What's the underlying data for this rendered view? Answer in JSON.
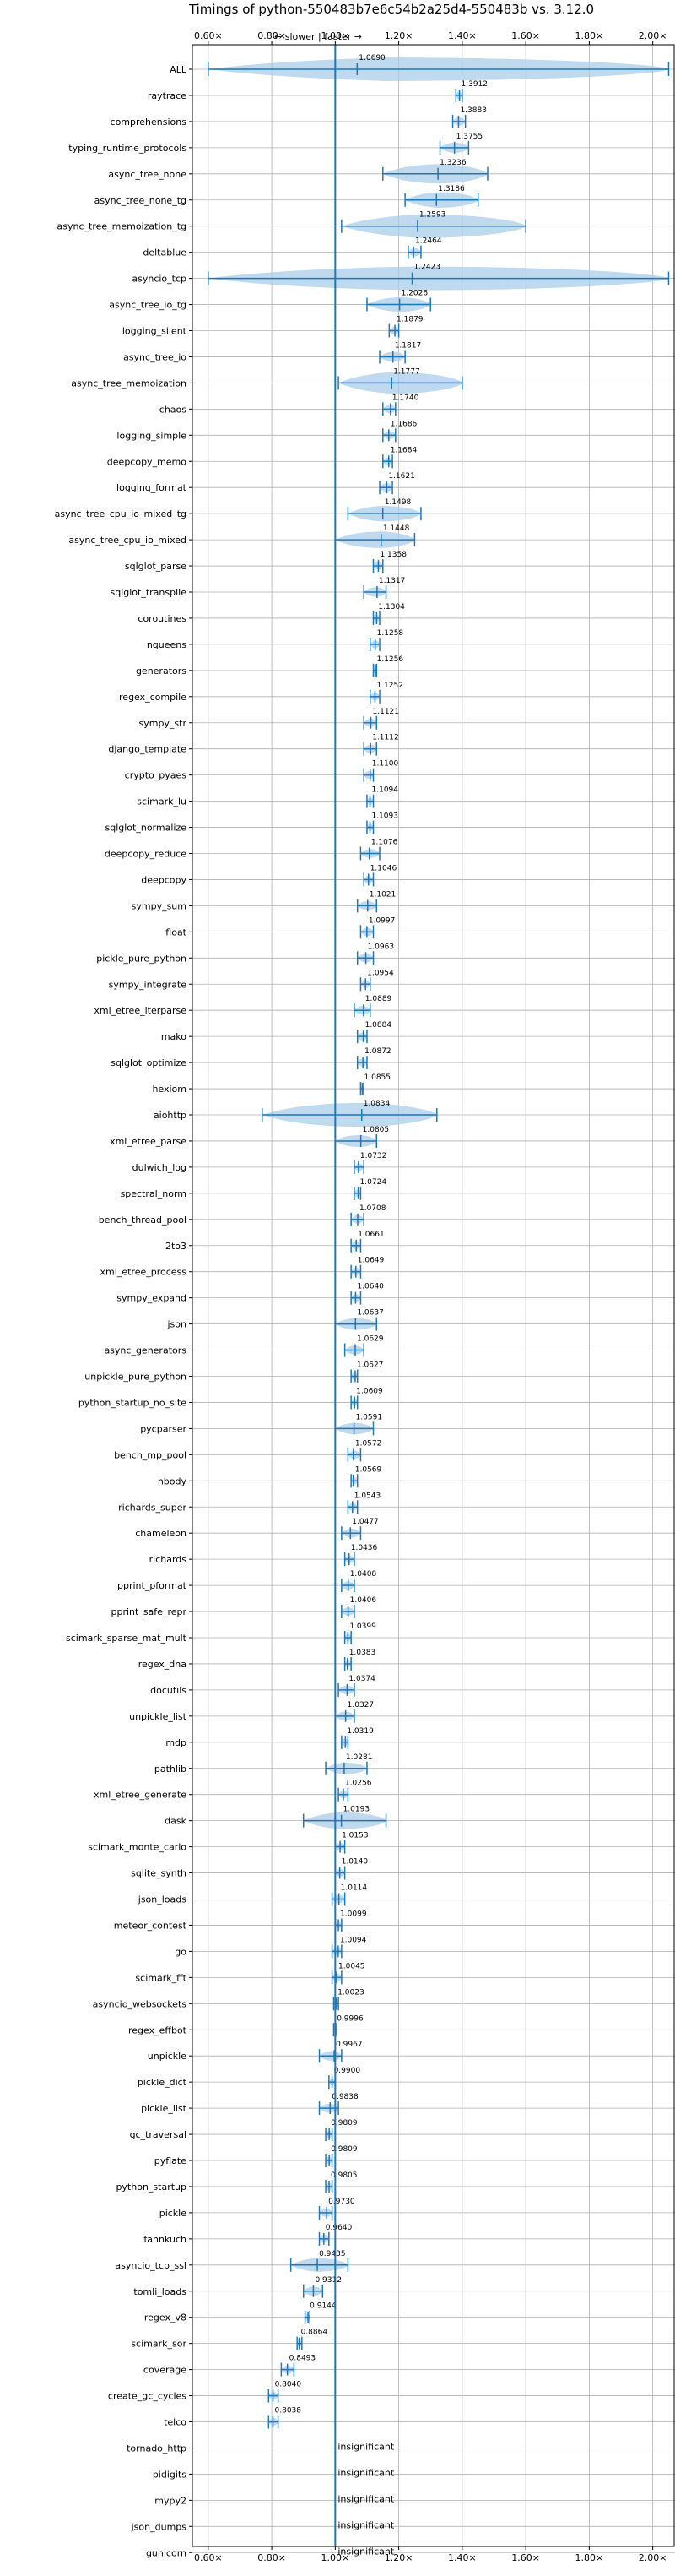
{
  "chart_data": {
    "type": "violin",
    "title": "Timings of python-550483b7e6c54b2a25d4-550483b vs. 3.12.0",
    "annotation": "← slower | faster →",
    "xlim": [
      0.55,
      2.07
    ],
    "xticks": [
      0.6,
      0.8,
      1.0,
      1.2,
      1.4,
      1.6,
      1.8,
      2.0
    ],
    "xtick_labels": [
      "0.60×",
      "0.80×",
      "1.00×",
      "1.20×",
      "1.40×",
      "1.60×",
      "1.80×",
      "2.00×"
    ],
    "reference_line": 1.0,
    "grid": true,
    "colors": {
      "violin": "#a9cce8",
      "line": "#1f77b4",
      "highlight": "#e377c2",
      "text": "#000000",
      "grid": "#b0b0b0"
    },
    "insignificant_label": "insignificant",
    "benchmarks": [
      {
        "name": "ALL",
        "value": 1.069,
        "label": "1.0690",
        "min": 0.6,
        "max": 2.05
      },
      {
        "name": "raytrace",
        "value": 1.3912,
        "label": "1.3912",
        "min": 1.38,
        "max": 1.4
      },
      {
        "name": "comprehensions",
        "value": 1.3883,
        "label": "1.3883",
        "min": 1.37,
        "max": 1.41
      },
      {
        "name": "typing_runtime_protocols",
        "value": 1.3755,
        "label": "1.3755",
        "min": 1.33,
        "max": 1.42
      },
      {
        "name": "async_tree_none",
        "value": 1.3236,
        "label": "1.3236",
        "min": 1.15,
        "max": 1.48
      },
      {
        "name": "async_tree_none_tg",
        "value": 1.3186,
        "label": "1.3186",
        "min": 1.22,
        "max": 1.45
      },
      {
        "name": "async_tree_memoization_tg",
        "value": 1.2593,
        "label": "1.2593",
        "min": 1.02,
        "max": 1.6
      },
      {
        "name": "deltablue",
        "value": 1.2464,
        "label": "1.2464",
        "min": 1.23,
        "max": 1.27
      },
      {
        "name": "asyncio_tcp",
        "value": 1.2423,
        "label": "1.2423",
        "min": 0.6,
        "max": 2.05
      },
      {
        "name": "async_tree_io_tg",
        "value": 1.2026,
        "label": "1.2026",
        "min": 1.1,
        "max": 1.3
      },
      {
        "name": "logging_silent",
        "value": 1.1879,
        "label": "1.1879",
        "min": 1.17,
        "max": 1.2
      },
      {
        "name": "async_tree_io",
        "value": 1.1817,
        "label": "1.1817",
        "min": 1.14,
        "max": 1.22
      },
      {
        "name": "async_tree_memoization",
        "value": 1.1777,
        "label": "1.1777",
        "min": 1.01,
        "max": 1.4
      },
      {
        "name": "chaos",
        "value": 1.174,
        "label": "1.1740",
        "min": 1.15,
        "max": 1.19
      },
      {
        "name": "logging_simple",
        "value": 1.1686,
        "label": "1.1686",
        "min": 1.15,
        "max": 1.19
      },
      {
        "name": "deepcopy_memo",
        "value": 1.1684,
        "label": "1.1684",
        "min": 1.15,
        "max": 1.18
      },
      {
        "name": "logging_format",
        "value": 1.1621,
        "label": "1.1621",
        "min": 1.14,
        "max": 1.18
      },
      {
        "name": "async_tree_cpu_io_mixed_tg",
        "value": 1.1498,
        "label": "1.1498",
        "min": 1.04,
        "max": 1.27
      },
      {
        "name": "async_tree_cpu_io_mixed",
        "value": 1.1448,
        "label": "1.1448",
        "min": 1.0,
        "max": 1.25
      },
      {
        "name": "sqlglot_parse",
        "value": 1.1358,
        "label": "1.1358",
        "min": 1.12,
        "max": 1.15
      },
      {
        "name": "sqlglot_transpile",
        "value": 1.1317,
        "label": "1.1317",
        "min": 1.09,
        "max": 1.16
      },
      {
        "name": "coroutines",
        "value": 1.1304,
        "label": "1.1304",
        "min": 1.12,
        "max": 1.14
      },
      {
        "name": "nqueens",
        "value": 1.1258,
        "label": "1.1258",
        "min": 1.11,
        "max": 1.14
      },
      {
        "name": "generators",
        "value": 1.1256,
        "label": "1.1256",
        "min": 1.12,
        "max": 1.13
      },
      {
        "name": "regex_compile",
        "value": 1.1252,
        "label": "1.1252",
        "min": 1.11,
        "max": 1.14
      },
      {
        "name": "sympy_str",
        "value": 1.1121,
        "label": "1.1121",
        "min": 1.09,
        "max": 1.13
      },
      {
        "name": "django_template",
        "value": 1.1112,
        "label": "1.1112",
        "min": 1.09,
        "max": 1.13
      },
      {
        "name": "crypto_pyaes",
        "value": 1.11,
        "label": "1.1100",
        "min": 1.09,
        "max": 1.12
      },
      {
        "name": "scimark_lu",
        "value": 1.1094,
        "label": "1.1094",
        "min": 1.1,
        "max": 1.12
      },
      {
        "name": "sqlglot_normalize",
        "value": 1.1093,
        "label": "1.1093",
        "min": 1.1,
        "max": 1.12
      },
      {
        "name": "deepcopy_reduce",
        "value": 1.1076,
        "label": "1.1076",
        "min": 1.08,
        "max": 1.14
      },
      {
        "name": "deepcopy",
        "value": 1.1046,
        "label": "1.1046",
        "min": 1.09,
        "max": 1.12
      },
      {
        "name": "sympy_sum",
        "value": 1.1021,
        "label": "1.1021",
        "min": 1.07,
        "max": 1.13
      },
      {
        "name": "float",
        "value": 1.0997,
        "label": "1.0997",
        "min": 1.08,
        "max": 1.12
      },
      {
        "name": "pickle_pure_python",
        "value": 1.0963,
        "label": "1.0963",
        "min": 1.07,
        "max": 1.12
      },
      {
        "name": "sympy_integrate",
        "value": 1.0954,
        "label": "1.0954",
        "min": 1.08,
        "max": 1.11
      },
      {
        "name": "xml_etree_iterparse",
        "value": 1.0889,
        "label": "1.0889",
        "min": 1.06,
        "max": 1.11
      },
      {
        "name": "mako",
        "value": 1.0884,
        "label": "1.0884",
        "min": 1.07,
        "max": 1.1
      },
      {
        "name": "sqlglot_optimize",
        "value": 1.0872,
        "label": "1.0872",
        "min": 1.07,
        "max": 1.1
      },
      {
        "name": "hexiom",
        "value": 1.0855,
        "label": "1.0855",
        "min": 1.08,
        "max": 1.09
      },
      {
        "name": "aiohttp",
        "value": 1.0834,
        "label": "1.0834",
        "min": 0.77,
        "max": 1.32
      },
      {
        "name": "xml_etree_parse",
        "value": 1.0805,
        "label": "1.0805",
        "min": 1.0,
        "max": 1.13
      },
      {
        "name": "dulwich_log",
        "value": 1.0732,
        "label": "1.0732",
        "min": 1.06,
        "max": 1.09
      },
      {
        "name": "spectral_norm",
        "value": 1.0724,
        "label": "1.0724",
        "min": 1.06,
        "max": 1.08
      },
      {
        "name": "bench_thread_pool",
        "value": 1.0708,
        "label": "1.0708",
        "min": 1.05,
        "max": 1.09
      },
      {
        "name": "2to3",
        "value": 1.0661,
        "label": "1.0661",
        "min": 1.05,
        "max": 1.08
      },
      {
        "name": "xml_etree_process",
        "value": 1.0649,
        "label": "1.0649",
        "min": 1.05,
        "max": 1.08
      },
      {
        "name": "sympy_expand",
        "value": 1.064,
        "label": "1.0640",
        "min": 1.05,
        "max": 1.08
      },
      {
        "name": "json",
        "value": 1.0637,
        "label": "1.0637",
        "min": 1.0,
        "max": 1.13
      },
      {
        "name": "async_generators",
        "value": 1.0629,
        "label": "1.0629",
        "min": 1.03,
        "max": 1.09
      },
      {
        "name": "unpickle_pure_python",
        "value": 1.0627,
        "label": "1.0627",
        "min": 1.05,
        "max": 1.07
      },
      {
        "name": "python_startup_no_site",
        "value": 1.0609,
        "label": "1.0609",
        "min": 1.05,
        "max": 1.07
      },
      {
        "name": "pycparser",
        "value": 1.0591,
        "label": "1.0591",
        "min": 1.0,
        "max": 1.12
      },
      {
        "name": "bench_mp_pool",
        "value": 1.0572,
        "label": "1.0572",
        "min": 1.04,
        "max": 1.08
      },
      {
        "name": "nbody",
        "value": 1.0569,
        "label": "1.0569",
        "min": 1.05,
        "max": 1.07
      },
      {
        "name": "richards_super",
        "value": 1.0543,
        "label": "1.0543",
        "min": 1.04,
        "max": 1.07
      },
      {
        "name": "chameleon",
        "value": 1.0477,
        "label": "1.0477",
        "min": 1.02,
        "max": 1.08
      },
      {
        "name": "richards",
        "value": 1.0436,
        "label": "1.0436",
        "min": 1.03,
        "max": 1.06
      },
      {
        "name": "pprint_pformat",
        "value": 1.0408,
        "label": "1.0408",
        "min": 1.02,
        "max": 1.06
      },
      {
        "name": "pprint_safe_repr",
        "value": 1.0406,
        "label": "1.0406",
        "min": 1.02,
        "max": 1.06
      },
      {
        "name": "scimark_sparse_mat_mult",
        "value": 1.0399,
        "label": "1.0399",
        "min": 1.03,
        "max": 1.05
      },
      {
        "name": "regex_dna",
        "value": 1.0383,
        "label": "1.0383",
        "min": 1.03,
        "max": 1.05
      },
      {
        "name": "docutils",
        "value": 1.0374,
        "label": "1.0374",
        "min": 1.01,
        "max": 1.06
      },
      {
        "name": "unpickle_list",
        "value": 1.0327,
        "label": "1.0327",
        "min": 1.0,
        "max": 1.06
      },
      {
        "name": "mdp",
        "value": 1.0319,
        "label": "1.0319",
        "min": 1.02,
        "max": 1.04
      },
      {
        "name": "pathlib",
        "value": 1.0281,
        "label": "1.0281",
        "min": 0.97,
        "max": 1.1
      },
      {
        "name": "xml_etree_generate",
        "value": 1.0256,
        "label": "1.0256",
        "min": 1.01,
        "max": 1.04
      },
      {
        "name": "dask",
        "value": 1.0193,
        "label": "1.0193",
        "min": 0.9,
        "max": 1.16
      },
      {
        "name": "scimark_monte_carlo",
        "value": 1.0153,
        "label": "1.0153",
        "min": 1.0,
        "max": 1.03
      },
      {
        "name": "sqlite_synth",
        "value": 1.014,
        "label": "1.0140",
        "min": 1.0,
        "max": 1.03
      },
      {
        "name": "json_loads",
        "value": 1.0114,
        "label": "1.0114",
        "min": 0.99,
        "max": 1.03
      },
      {
        "name": "meteor_contest",
        "value": 1.0099,
        "label": "1.0099",
        "min": 1.0,
        "max": 1.02
      },
      {
        "name": "go",
        "value": 1.0094,
        "label": "1.0094",
        "min": 0.99,
        "max": 1.02
      },
      {
        "name": "scimark_fft",
        "value": 1.0045,
        "label": "1.0045",
        "min": 0.99,
        "max": 1.02
      },
      {
        "name": "asyncio_websockets",
        "value": 1.0023,
        "label": "1.0023",
        "min": 0.995,
        "max": 1.01
      },
      {
        "name": "regex_effbot",
        "value": 0.9996,
        "label": "0.9996",
        "min": 0.995,
        "max": 1.005
      },
      {
        "name": "unpickle",
        "value": 0.9967,
        "label": "0.9967",
        "min": 0.95,
        "max": 1.02
      },
      {
        "name": "pickle_dict",
        "value": 0.99,
        "label": "0.9900",
        "min": 0.98,
        "max": 1.0
      },
      {
        "name": "pickle_list",
        "value": 0.9838,
        "label": "0.9838",
        "min": 0.95,
        "max": 1.01
      },
      {
        "name": "gc_traversal",
        "value": 0.9809,
        "label": "0.9809",
        "min": 0.97,
        "max": 0.99
      },
      {
        "name": "pyflate",
        "value": 0.9809,
        "label": "0.9809",
        "min": 0.97,
        "max": 0.99
      },
      {
        "name": "python_startup",
        "value": 0.9805,
        "label": "0.9805",
        "min": 0.97,
        "max": 0.99
      },
      {
        "name": "pickle",
        "value": 0.973,
        "label": "0.9730",
        "min": 0.95,
        "max": 0.99
      },
      {
        "name": "fannkuch",
        "value": 0.964,
        "label": "0.9640",
        "min": 0.95,
        "max": 0.98
      },
      {
        "name": "asyncio_tcp_ssl",
        "value": 0.9435,
        "label": "0.9435",
        "min": 0.86,
        "max": 1.04
      },
      {
        "name": "tomli_loads",
        "value": 0.9312,
        "label": "0.9312",
        "min": 0.9,
        "max": 0.96
      },
      {
        "name": "regex_v8",
        "value": 0.9144,
        "label": "0.9144",
        "min": 0.905,
        "max": 0.92
      },
      {
        "name": "scimark_sor",
        "value": 0.8864,
        "label": "0.8864",
        "min": 0.88,
        "max": 0.895
      },
      {
        "name": "coverage",
        "value": 0.8493,
        "label": "0.8493",
        "min": 0.83,
        "max": 0.87
      },
      {
        "name": "create_gc_cycles",
        "value": 0.804,
        "label": "0.8040",
        "min": 0.79,
        "max": 0.82
      },
      {
        "name": "telco",
        "value": 0.8038,
        "label": "0.8038",
        "min": 0.79,
        "max": 0.82
      },
      {
        "name": "tornado_http",
        "insignificant": true
      },
      {
        "name": "pidigits",
        "insignificant": true
      },
      {
        "name": "mypy2",
        "insignificant": true
      },
      {
        "name": "json_dumps",
        "insignificant": true
      },
      {
        "name": "gunicorn",
        "insignificant": true
      }
    ]
  }
}
